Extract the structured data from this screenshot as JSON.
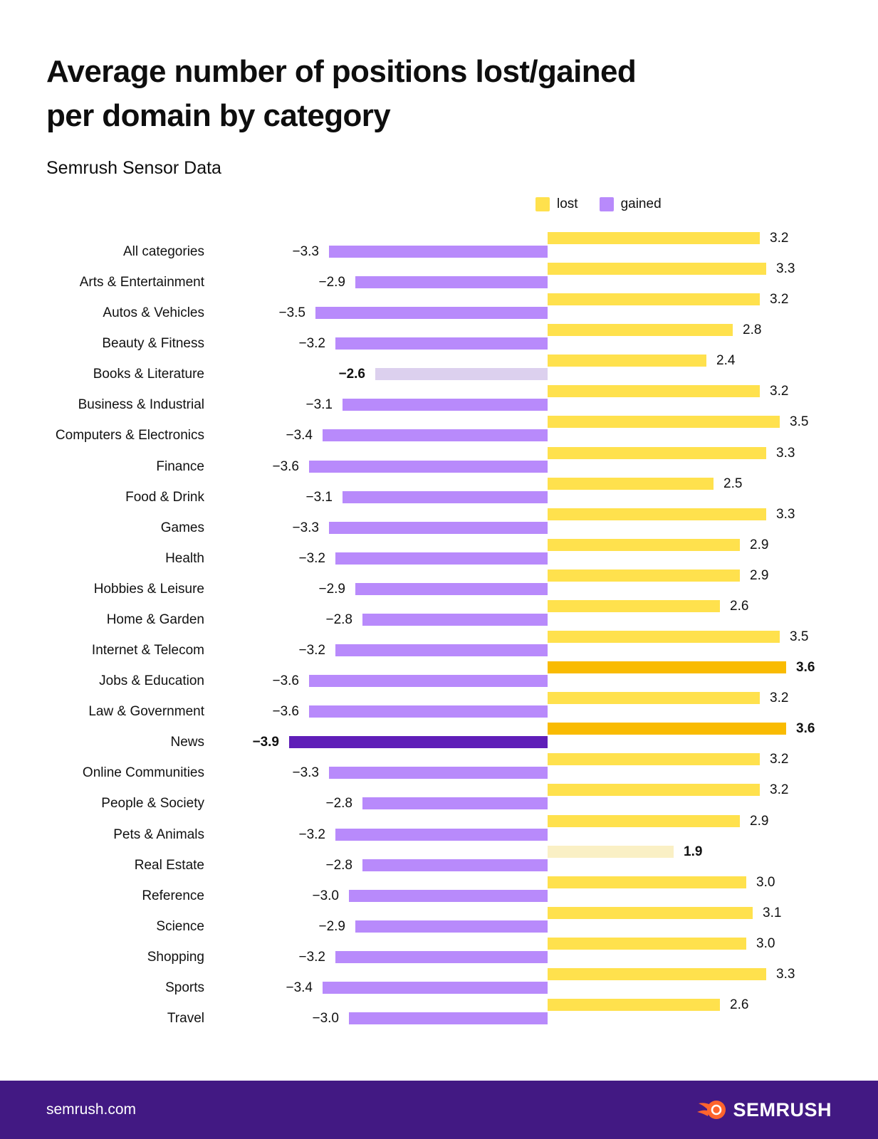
{
  "title_line1": "Average number of positions lost/gained",
  "title_line2": "per domain by category",
  "subtitle": "Semrush Sensor Data",
  "legend": {
    "lost_label": "lost",
    "gained_label": "gained"
  },
  "colors": {
    "lost": "#FFE14D",
    "gained": "#B88AFB",
    "lost_high": "#F9BB02",
    "lost_low": "#FAF0C5",
    "gained_low": "#DCD0EE",
    "gained_high": "#5F1EB8",
    "footer_bg": "#421983",
    "logo_orange": "#FF642D",
    "text": "#111111"
  },
  "chart_data": {
    "type": "bar",
    "orientation": "horizontal-diverging",
    "title": "Average number of positions lost/gained per domain by category",
    "subtitle": "Semrush Sensor Data",
    "legend_position": "top-right",
    "xlim": [
      -3.9,
      3.6
    ],
    "grid": false,
    "categories": [
      "All categories",
      "Arts & Entertainment",
      "Autos & Vehicles",
      "Beauty & Fitness",
      "Books & Literature",
      "Business & Industrial",
      "Computers & Electronics",
      "Finance",
      "Food & Drink",
      "Games",
      "Health",
      "Hobbies & Leisure",
      "Home & Garden",
      "Internet & Telecom",
      "Jobs & Education",
      "Law & Government",
      "News",
      "Online Communities",
      "People & Society",
      "Pets & Animals",
      "Real Estate",
      "Reference",
      "Science",
      "Shopping",
      "Sports",
      "Travel"
    ],
    "series": [
      {
        "name": "lost",
        "color": "#FFE14D",
        "values": [
          3.2,
          3.3,
          3.2,
          2.8,
          2.4,
          3.2,
          3.5,
          3.3,
          2.5,
          3.3,
          2.9,
          2.9,
          2.6,
          3.5,
          3.6,
          3.2,
          3.6,
          3.2,
          3.2,
          2.9,
          1.9,
          3.0,
          3.1,
          3.0,
          3.3,
          2.6
        ]
      },
      {
        "name": "gained",
        "color": "#B88AFB",
        "values": [
          -3.3,
          -2.9,
          -3.5,
          -3.2,
          -2.6,
          -3.1,
          -3.4,
          -3.6,
          -3.1,
          -3.3,
          -3.2,
          -2.9,
          -2.8,
          -3.2,
          -3.6,
          -3.6,
          -3.9,
          -3.3,
          -2.8,
          -3.2,
          -2.8,
          -3.0,
          -2.9,
          -3.2,
          -3.4,
          -3.0
        ]
      }
    ]
  },
  "rows": [
    {
      "label": "All categories",
      "lost": {
        "v": 3.2,
        "text": "3.2"
      },
      "gained": {
        "v": 3.3,
        "text": "−3.3"
      }
    },
    {
      "label": "Arts & Entertainment",
      "lost": {
        "v": 3.3,
        "text": "3.3"
      },
      "gained": {
        "v": 2.9,
        "text": "−2.9"
      }
    },
    {
      "label": "Autos & Vehicles",
      "lost": {
        "v": 3.2,
        "text": "3.2"
      },
      "gained": {
        "v": 3.5,
        "text": "−3.5"
      }
    },
    {
      "label": "Beauty & Fitness",
      "lost": {
        "v": 2.8,
        "text": "2.8"
      },
      "gained": {
        "v": 3.2,
        "text": "−3.2"
      }
    },
    {
      "label": "Books & Literature",
      "lost": {
        "v": 2.4,
        "text": "2.4"
      },
      "gained": {
        "v": 2.6,
        "text": "−2.6",
        "color": "#DCD0EE",
        "bold": true
      }
    },
    {
      "label": "Business & Industrial",
      "lost": {
        "v": 3.2,
        "text": "3.2"
      },
      "gained": {
        "v": 3.1,
        "text": "−3.1"
      }
    },
    {
      "label": "Computers & Electronics",
      "lost": {
        "v": 3.5,
        "text": "3.5"
      },
      "gained": {
        "v": 3.4,
        "text": "−3.4"
      }
    },
    {
      "label": "Finance",
      "lost": {
        "v": 3.3,
        "text": "3.3"
      },
      "gained": {
        "v": 3.6,
        "text": "−3.6"
      }
    },
    {
      "label": "Food & Drink",
      "lost": {
        "v": 2.5,
        "text": "2.5"
      },
      "gained": {
        "v": 3.1,
        "text": "−3.1"
      }
    },
    {
      "label": "Games",
      "lost": {
        "v": 3.3,
        "text": "3.3"
      },
      "gained": {
        "v": 3.3,
        "text": "−3.3"
      }
    },
    {
      "label": "Health",
      "lost": {
        "v": 2.9,
        "text": "2.9"
      },
      "gained": {
        "v": 3.2,
        "text": "−3.2"
      }
    },
    {
      "label": "Hobbies & Leisure",
      "lost": {
        "v": 2.9,
        "text": "2.9"
      },
      "gained": {
        "v": 2.9,
        "text": "−2.9"
      }
    },
    {
      "label": "Home & Garden",
      "lost": {
        "v": 2.6,
        "text": "2.6"
      },
      "gained": {
        "v": 2.8,
        "text": "−2.8"
      }
    },
    {
      "label": "Internet & Telecom",
      "lost": {
        "v": 3.5,
        "text": "3.5"
      },
      "gained": {
        "v": 3.2,
        "text": "−3.2"
      }
    },
    {
      "label": "Jobs & Education",
      "lost": {
        "v": 3.6,
        "text": "3.6",
        "color": "#F9BB02",
        "bold": true
      },
      "gained": {
        "v": 3.6,
        "text": "−3.6"
      }
    },
    {
      "label": "Law & Government",
      "lost": {
        "v": 3.2,
        "text": "3.2"
      },
      "gained": {
        "v": 3.6,
        "text": "−3.6"
      }
    },
    {
      "label": "News",
      "lost": {
        "v": 3.6,
        "text": "3.6",
        "color": "#F9BB02",
        "bold": true
      },
      "gained": {
        "v": 3.9,
        "text": "−3.9",
        "color": "#5F1EB8",
        "bold": true
      }
    },
    {
      "label": "Online Communities",
      "lost": {
        "v": 3.2,
        "text": "3.2"
      },
      "gained": {
        "v": 3.3,
        "text": "−3.3"
      }
    },
    {
      "label": "People & Society",
      "lost": {
        "v": 3.2,
        "text": "3.2"
      },
      "gained": {
        "v": 2.8,
        "text": "−2.8"
      }
    },
    {
      "label": "Pets & Animals",
      "lost": {
        "v": 2.9,
        "text": "2.9"
      },
      "gained": {
        "v": 3.2,
        "text": "−3.2"
      }
    },
    {
      "label": "Real Estate",
      "lost": {
        "v": 1.9,
        "text": "1.9",
        "color": "#FAF0C5",
        "bold": true
      },
      "gained": {
        "v": 2.8,
        "text": "−2.8"
      }
    },
    {
      "label": "Reference",
      "lost": {
        "v": 3.0,
        "text": "3.0"
      },
      "gained": {
        "v": 3.0,
        "text": "−3.0"
      }
    },
    {
      "label": "Science",
      "lost": {
        "v": 3.1,
        "text": "3.1"
      },
      "gained": {
        "v": 2.9,
        "text": "−2.9"
      }
    },
    {
      "label": "Shopping",
      "lost": {
        "v": 3.0,
        "text": "3.0"
      },
      "gained": {
        "v": 3.2,
        "text": "−3.2"
      }
    },
    {
      "label": "Sports",
      "lost": {
        "v": 3.3,
        "text": "3.3"
      },
      "gained": {
        "v": 3.4,
        "text": "−3.4"
      }
    },
    {
      "label": "Travel",
      "lost": {
        "v": 2.6,
        "text": "2.6"
      },
      "gained": {
        "v": 3.0,
        "text": "−3.0"
      }
    }
  ],
  "footer": {
    "site": "semrush.com",
    "brand": "SEMRUSH"
  }
}
